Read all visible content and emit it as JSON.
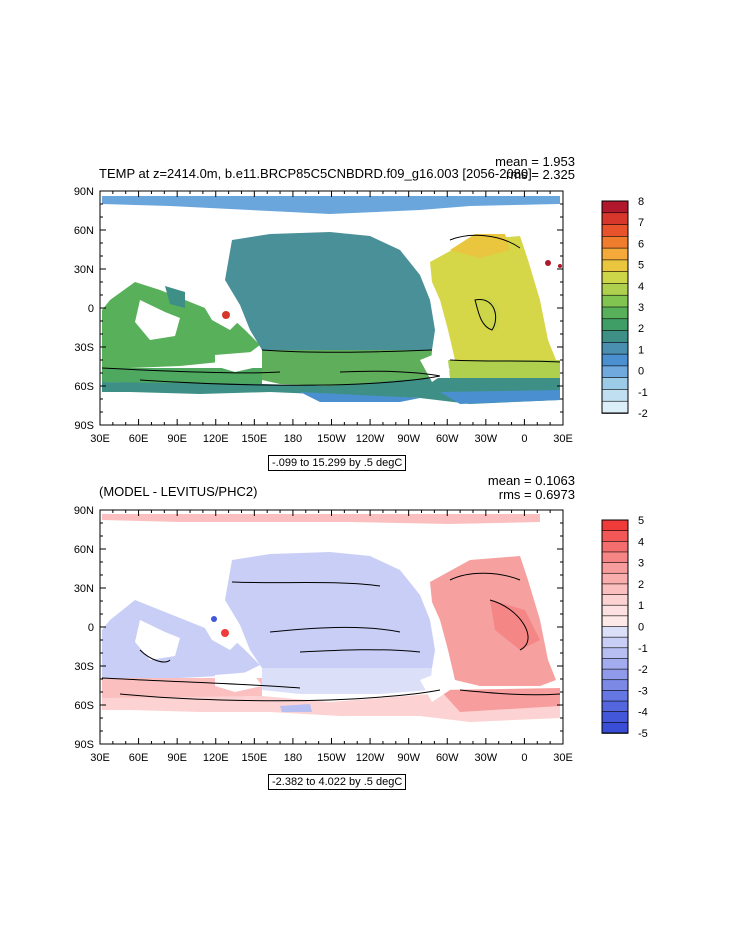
{
  "chart_data": [
    {
      "type": "heatmap",
      "title": "TEMP at z=2414.0m, b.e11.BRCP85C5CNBDRD.f09_g16.003 [2056-2080]",
      "mean_label": "mean = 1.953",
      "rms_label": "rms = 2.325",
      "range_label": "-.099 to 15.299 by .5 degC",
      "x_tick_labels": [
        "30E",
        "60E",
        "90E",
        "120E",
        "150E",
        "180",
        "150W",
        "120W",
        "90W",
        "60W",
        "30W",
        "0",
        "30E"
      ],
      "y_tick_labels": [
        "90N",
        "60N",
        "30N",
        "0",
        "30S",
        "60S",
        "90S"
      ],
      "xlim": [
        30,
        390
      ],
      "ylim": [
        -90,
        90
      ],
      "colorbar": {
        "labels": [
          "8",
          "7",
          "6",
          "5",
          "4",
          "3",
          "2",
          "1",
          "0",
          "-1",
          "-2"
        ],
        "colors": [
          "#b2182b",
          "#d6372a",
          "#e8532b",
          "#f07c2d",
          "#f5a93b",
          "#e9c63e",
          "#cdd548",
          "#aed04e",
          "#82c450",
          "#58b15a",
          "#3f9d66",
          "#3e8f86",
          "#4a8fb0",
          "#4a8fd0",
          "#6fa9dd",
          "#9ccbe8",
          "#c0dff0",
          "#dceef8"
        ]
      }
    },
    {
      "type": "heatmap",
      "title": "(MODEL - LEVITUS/PHC2)",
      "mean_label": "mean = 0.1063",
      "rms_label": "rms = 0.6973",
      "range_label": "-2.382 to 4.022 by .5 degC",
      "x_tick_labels": [
        "30E",
        "60E",
        "90E",
        "120E",
        "150E",
        "180",
        "150W",
        "120W",
        "90W",
        "60W",
        "30W",
        "0",
        "30E"
      ],
      "y_tick_labels": [
        "90N",
        "60N",
        "30N",
        "0",
        "30S",
        "60S",
        "90S"
      ],
      "xlim": [
        30,
        390
      ],
      "ylim": [
        -90,
        90
      ],
      "colorbar": {
        "labels": [
          "5",
          "4",
          "3",
          "2",
          "1",
          "0",
          "-1",
          "-2",
          "-3",
          "-4",
          "-5"
        ],
        "colors": [
          "#f03b3b",
          "#f25858",
          "#f46e6e",
          "#f68686",
          "#f89d9d",
          "#faadad",
          "#fbbfbf",
          "#fdd2d2",
          "#fde0e0",
          "#fee9e9",
          "#dcdff8",
          "#c9cef6",
          "#b7bef2",
          "#a3acee",
          "#8f9bea",
          "#7c8ae6",
          "#6577e2",
          "#5366de",
          "#4357da",
          "#3a4dd6"
        ]
      }
    }
  ]
}
